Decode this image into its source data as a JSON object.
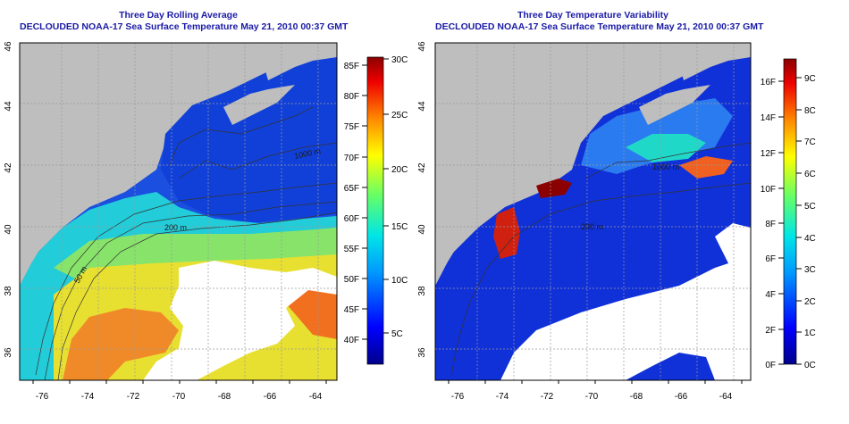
{
  "left_panel": {
    "title": "Three Day Rolling Average",
    "subtitle": "DECLOUDED NOAA-17 Sea Surface Temperature May 21, 2010 00:37 GMT",
    "x_ticks": [
      "-76",
      "-74",
      "-72",
      "-70",
      "-68",
      "-66",
      "-64"
    ],
    "y_ticks": [
      "36",
      "38",
      "40",
      "42",
      "44",
      "46"
    ],
    "contours": [
      "50 m",
      "200 m",
      "1000 m"
    ],
    "colorbar_f": [
      "40F",
      "45F",
      "50F",
      "55F",
      "60F",
      "65F",
      "70F",
      "75F",
      "80F",
      "85F"
    ],
    "colorbar_c": [
      "5C",
      "10C",
      "15C",
      "20C",
      "25C",
      "30C"
    ]
  },
  "right_panel": {
    "title": "Three Day Temperature Variability",
    "subtitle": "DECLOUDED NOAA-17 Sea Surface Temperature May 21, 2010 00:37 GMT",
    "x_ticks": [
      "-76",
      "-74",
      "-72",
      "-70",
      "-68",
      "-66",
      "-64"
    ],
    "y_ticks": [
      "36",
      "38",
      "40",
      "42",
      "44",
      "46"
    ],
    "contours": [
      "1000 m",
      "200 m"
    ],
    "colorbar_f": [
      "0F",
      "2F",
      "4F",
      "6F",
      "8F",
      "10F",
      "12F",
      "14F",
      "16F"
    ],
    "colorbar_c": [
      "0C",
      "1C",
      "2C",
      "3C",
      "4C",
      "5C",
      "6C",
      "7C",
      "8C",
      "9C"
    ]
  },
  "colors": {
    "title": "#1a1aa8",
    "land": "#bebebe",
    "cloud": "#ffffff"
  }
}
